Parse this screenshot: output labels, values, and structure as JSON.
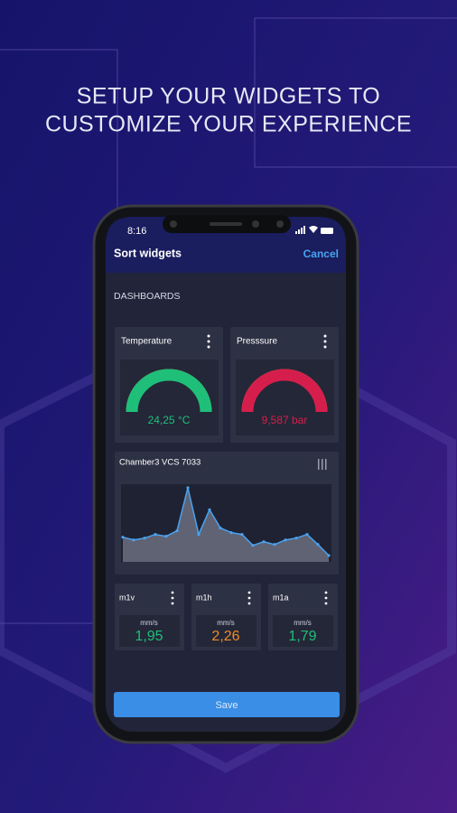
{
  "heading": {
    "line1": "SETUP YOUR WIDGETS TO",
    "line2": "CUSTOMIZE YOUR EXPERIENCE"
  },
  "status_bar": {
    "time": "8:16"
  },
  "header": {
    "title": "Sort widgets",
    "cancel": "Cancel"
  },
  "section": "DASHBOARDS",
  "widgets": [
    {
      "title": "Temperature",
      "value": "24,25 °C"
    },
    {
      "title": "Presssure",
      "value": "9,587 bar"
    }
  ],
  "chamber": {
    "title": "Chamber3 VCS 7033",
    "values": [
      27,
      24,
      26,
      30,
      28,
      34,
      81,
      30,
      57,
      37,
      32,
      30,
      18,
      22,
      19,
      24,
      26,
      30,
      19,
      7
    ]
  },
  "sensors": [
    {
      "name": "m1v",
      "unit": "mm/s",
      "value": "1,95"
    },
    {
      "name": "m1h",
      "unit": "mm/s",
      "value": "2,26"
    },
    {
      "name": "m1a",
      "unit": "mm/s",
      "value": "1,79"
    }
  ],
  "save": "Save"
}
